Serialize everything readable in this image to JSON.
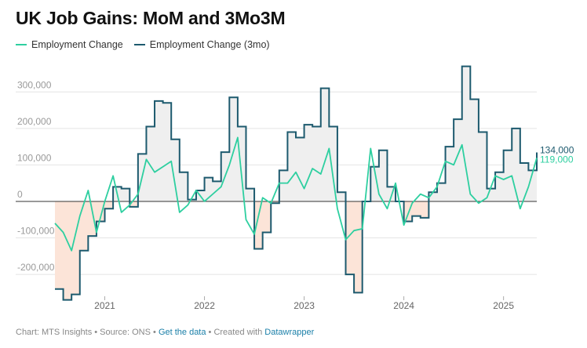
{
  "title": "UK Job Gains: MoM and 3Mo3M",
  "legend": [
    {
      "label": "Employment Change",
      "color": "#2ecfa0"
    },
    {
      "label": "Employment Change (3mo)",
      "color": "#1d5a6e"
    }
  ],
  "footer": {
    "source": "Chart: MTS Insights • Source: ONS • ",
    "get_data": "Get the data",
    "sep": " • Created with ",
    "tool": "Datawrapper"
  },
  "chart_data": {
    "type": "line",
    "ylim": [
      -260000,
      380000
    ],
    "xlim": [
      "2020-07",
      "2025-05"
    ],
    "x_ticks": [
      {
        "label": "2021",
        "x": "2021-01"
      },
      {
        "label": "2022",
        "x": "2022-01"
      },
      {
        "label": "2023",
        "x": "2023-01"
      },
      {
        "label": "2024",
        "x": "2024-01"
      },
      {
        "label": "2025",
        "x": "2025-01"
      }
    ],
    "y_ticks": [
      {
        "label": "300,000",
        "value": 300000
      },
      {
        "label": "200,000",
        "value": 200000
      },
      {
        "label": "100,000",
        "value": 100000
      },
      {
        "label": "0",
        "value": 0
      },
      {
        "label": "-100,000",
        "value": -100000
      },
      {
        "label": "-200,000",
        "value": -200000
      }
    ],
    "months": [
      "2020-07",
      "2020-08",
      "2020-09",
      "2020-10",
      "2020-11",
      "2020-12",
      "2021-01",
      "2021-02",
      "2021-03",
      "2021-04",
      "2021-05",
      "2021-06",
      "2021-07",
      "2021-08",
      "2021-09",
      "2021-10",
      "2021-11",
      "2021-12",
      "2022-01",
      "2022-02",
      "2022-03",
      "2022-04",
      "2022-05",
      "2022-06",
      "2022-07",
      "2022-08",
      "2022-09",
      "2022-10",
      "2022-11",
      "2022-12",
      "2023-01",
      "2023-02",
      "2023-03",
      "2023-04",
      "2023-05",
      "2023-06",
      "2023-07",
      "2023-08",
      "2023-09",
      "2023-10",
      "2023-11",
      "2023-12",
      "2024-01",
      "2024-02",
      "2024-03",
      "2024-04",
      "2024-05",
      "2024-06",
      "2024-07",
      "2024-08",
      "2024-09",
      "2024-10",
      "2024-11",
      "2024-12",
      "2025-01",
      "2025-02",
      "2025-03",
      "2025-04",
      "2025-05"
    ],
    "series": [
      {
        "name": "Employment Change",
        "color": "#2ecfa0",
        "style": "line",
        "values": [
          -60000,
          -85000,
          -135000,
          -40000,
          30000,
          -85000,
          0,
          70000,
          -30000,
          -10000,
          20000,
          115000,
          80000,
          95000,
          110000,
          -30000,
          -10000,
          30000,
          0,
          20000,
          40000,
          100000,
          175000,
          -50000,
          -90000,
          10000,
          -5000,
          50000,
          50000,
          80000,
          35000,
          90000,
          75000,
          145000,
          -20000,
          -105000,
          -80000,
          -75000,
          145000,
          20000,
          -20000,
          50000,
          -65000,
          -5000,
          20000,
          10000,
          40000,
          110000,
          100000,
          155000,
          20000,
          -5000,
          10000,
          70000,
          60000,
          70000,
          -20000,
          40000,
          119000
        ]
      },
      {
        "name": "Employment Change (3mo)",
        "color": "#1d5a6e",
        "style": "step",
        "values": [
          -240000,
          -270000,
          -255000,
          -135000,
          -95000,
          -55000,
          -20000,
          40000,
          35000,
          -15000,
          130000,
          205000,
          275000,
          270000,
          170000,
          80000,
          5000,
          30000,
          65000,
          55000,
          135000,
          285000,
          205000,
          35000,
          -130000,
          -85000,
          -5000,
          85000,
          190000,
          175000,
          210000,
          205000,
          310000,
          205000,
          25000,
          -200000,
          -250000,
          0,
          95000,
          140000,
          40000,
          0,
          -55000,
          -40000,
          -45000,
          25000,
          50000,
          150000,
          225000,
          370000,
          280000,
          190000,
          35000,
          80000,
          140000,
          200000,
          105000,
          85000,
          134000
        ]
      }
    ],
    "end_labels": [
      {
        "series": 1,
        "text": "134,000"
      },
      {
        "series": 0,
        "text": "119,000"
      }
    ]
  }
}
